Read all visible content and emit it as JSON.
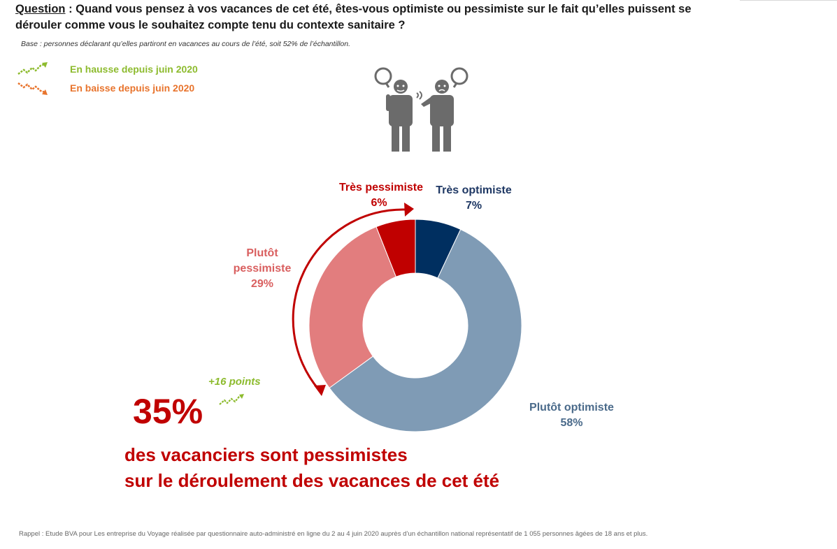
{
  "header": {
    "question_label": "Question",
    "question_text": " : Quand vous pensez à vos vacances de cet été, êtes-vous optimiste ou pessimiste sur le fait qu’elles puissent se dérouler comme vous le souhaitez compte tenu du contexte sanitaire ?",
    "base_note": "Base : personnes déclarant qu’elles partiront en vacances au cours de l’été, soit 52% de l’échantillon."
  },
  "legend": {
    "up": {
      "label": "En hausse depuis juin 2020",
      "color": "#8dbb2e",
      "icon": "trend-up-icon"
    },
    "down": {
      "label": "En baisse depuis juin  2020",
      "color": "#e8742d",
      "icon": "trend-down-icon"
    }
  },
  "chart_data": {
    "type": "pie",
    "style": "donut",
    "categories": [
      "Très optimiste",
      "Plutôt optimiste",
      "Plutôt pessimiste",
      "Très pessimiste"
    ],
    "values": [
      7,
      58,
      29,
      6
    ],
    "value_labels": [
      "7%",
      "58%",
      "29%",
      "6%"
    ],
    "colors": [
      "#002f60",
      "#7f9bb5",
      "#e27d7e",
      "#c00000"
    ],
    "label_colors": [
      "#1f3864",
      "#4a6a8a",
      "#d95f5f",
      "#c00000"
    ],
    "legend": "none"
  },
  "callout": {
    "big_value": "35%",
    "delta": "+16 points",
    "line1": "des vacanciers sont pessimistes",
    "line2": "sur le déroulement des vacances de cet été",
    "color": "#c00000"
  },
  "footer": "Rappel : Etude BVA pour Les entreprise du Voyage réalisée par questionnaire auto-administré en ligne du 2 au 4 juin 2020 auprès d’un échantillon national représentatif de 1 055 personnes âgées de 18 ans et plus."
}
